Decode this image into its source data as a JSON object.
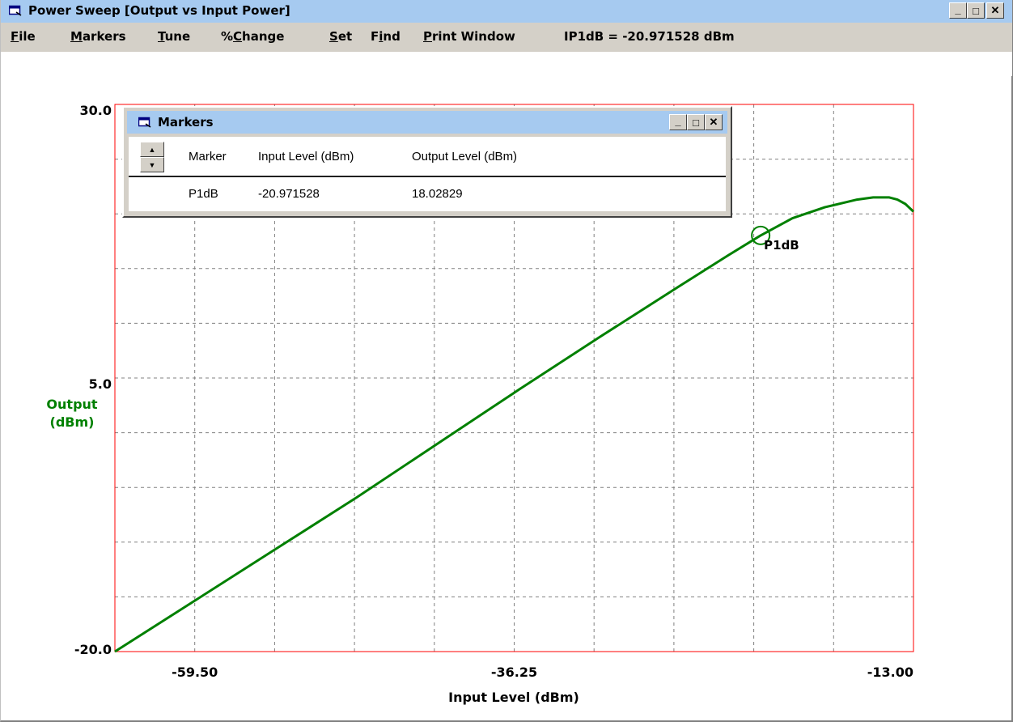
{
  "window": {
    "title": "Power Sweep [Output vs Input Power]",
    "caption_buttons": {
      "minimize": "_",
      "maximize": "□",
      "close": "✕"
    }
  },
  "menu": {
    "items": [
      {
        "label": "File",
        "mnemonic": "F"
      },
      {
        "label": "Markers",
        "mnemonic": "M"
      },
      {
        "label": "Tune",
        "mnemonic": "T"
      },
      {
        "label": "%Change",
        "mnemonic": "C"
      },
      {
        "label": "Set",
        "mnemonic": "S"
      },
      {
        "label": "Find",
        "mnemonic": "i"
      },
      {
        "label": "Print Window",
        "mnemonic": "P"
      }
    ],
    "status": "IP1dB = -20.971528 dBm"
  },
  "chart_data": {
    "type": "line",
    "xlabel": "Input Level (dBm)",
    "ylabel": "Output\n(dBm)",
    "x_ticks": [
      "-59.50",
      "-36.25",
      "-13.00"
    ],
    "y_ticks": [
      "30.0",
      "5.0",
      "-20.0"
    ],
    "xlim": [
      -61.0,
      -11.5
    ],
    "ylim": [
      -20.0,
      30.0
    ],
    "grid": true,
    "series": [
      {
        "color": "#008000",
        "x": [
          -61.0,
          -56.0,
          -51.0,
          -46.0,
          -41.0,
          -36.0,
          -31.0,
          -26.0,
          -23.0,
          -21.0,
          -19.0,
          -17.0,
          -15.0,
          -14.0,
          -13.0,
          -12.5,
          -12.0,
          -11.5
        ],
        "y": [
          -20.0,
          -15.3,
          -10.6,
          -5.9,
          -1.0,
          3.9,
          8.7,
          13.4,
          16.2,
          18.0,
          19.6,
          20.6,
          21.3,
          21.5,
          21.5,
          21.3,
          20.9,
          20.2
        ]
      }
    ],
    "marker": {
      "label": "P1dB",
      "x": -20.971528,
      "y": 18.02829,
      "color": "#008000"
    },
    "colors": {
      "frame": "#ff0000",
      "grid": "#808080",
      "axis_label": "#008000"
    }
  },
  "markers_window": {
    "title": "Markers",
    "columns": [
      "Marker",
      "Input Level (dBm)",
      "Output Level (dBm)"
    ],
    "rows": [
      {
        "name": "P1dB",
        "input": "-20.971528",
        "output": "18.02829"
      }
    ]
  }
}
